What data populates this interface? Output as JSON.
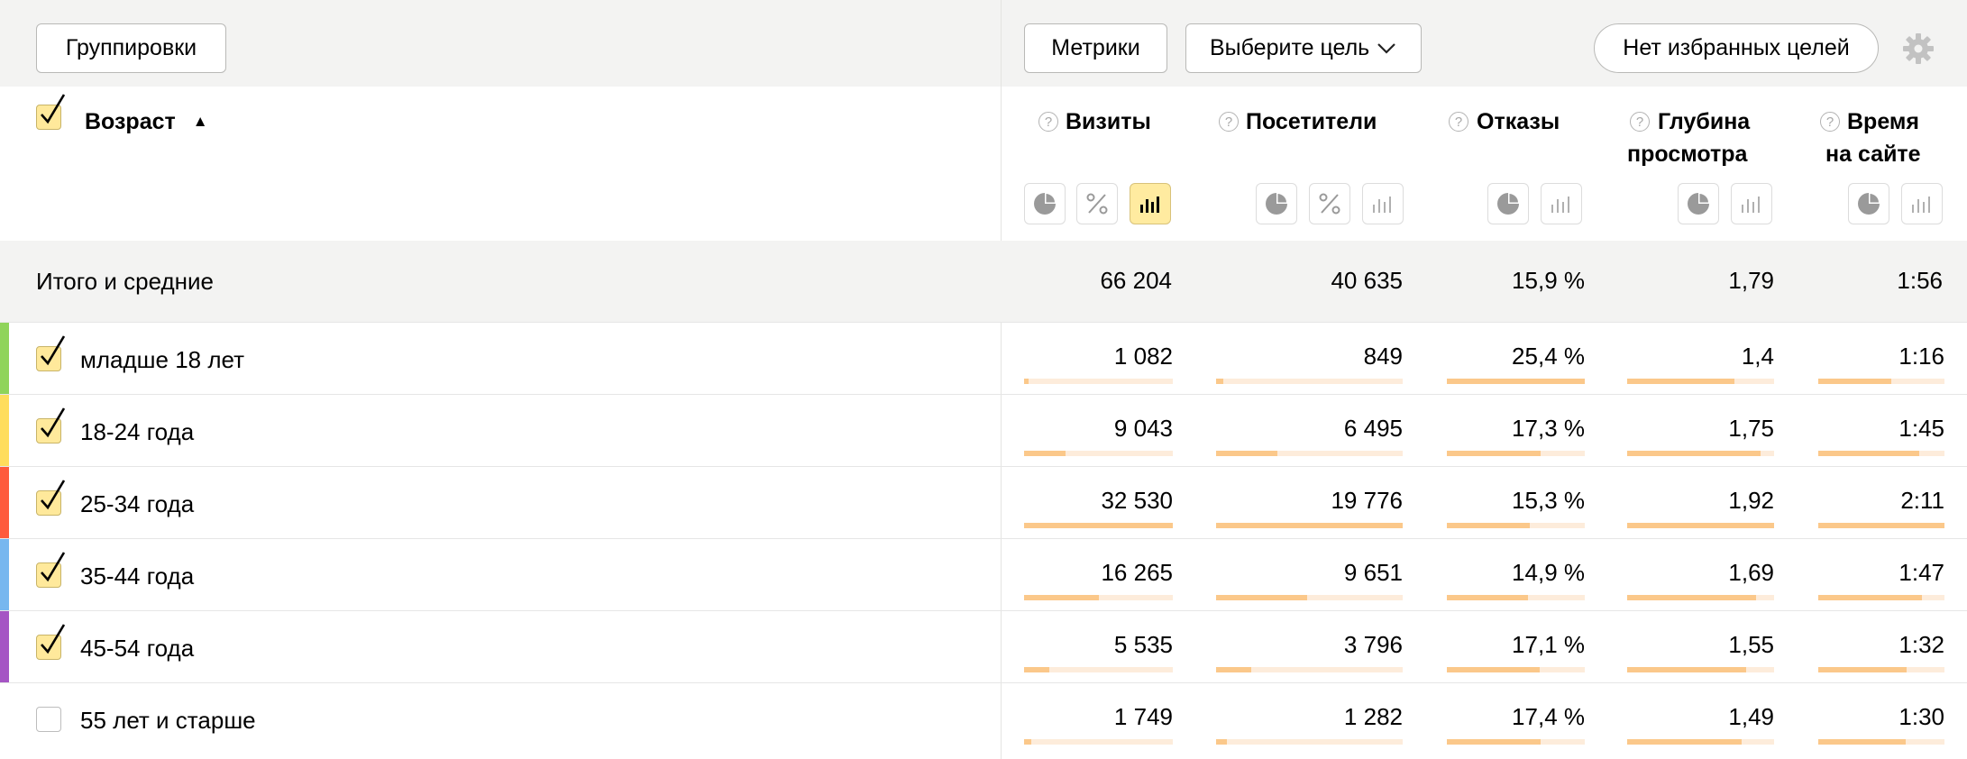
{
  "toolbar": {
    "groupings_label": "Группировки",
    "metrics_label": "Метрики",
    "goal_select_label": "Выберите цель",
    "favorite_goals_label": "Нет избранных целей"
  },
  "dimension": {
    "title": "Возраст",
    "sort_indicator": "▲"
  },
  "columns": [
    {
      "title": "Визиты",
      "title2": "",
      "help": "?"
    },
    {
      "title": "Посетители",
      "title2": "",
      "help": "?"
    },
    {
      "title": "Отказы",
      "title2": "",
      "help": "?"
    },
    {
      "title": "Глубина",
      "title2": "просмотра",
      "help": "?"
    },
    {
      "title": "Время",
      "title2": "на сайте",
      "help": "?"
    }
  ],
  "totals": {
    "label": "Итого и средние",
    "values": [
      "66 204",
      "40 635",
      "15,9 %",
      "1,79",
      "1:56"
    ]
  },
  "rows": [
    {
      "label": "младше 18 лет",
      "checked": true,
      "color": "#8fd45a",
      "values": [
        "1 082",
        "849",
        "25,4 %",
        "1,4",
        "1:16"
      ],
      "shares": [
        0.03,
        0.04,
        1.0,
        0.73,
        0.58
      ]
    },
    {
      "label": "18-24 года",
      "checked": true,
      "color": "#ffdd5c",
      "values": [
        "9 043",
        "6 495",
        "17,3 %",
        "1,75",
        "1:45"
      ],
      "shares": [
        0.28,
        0.33,
        0.68,
        0.91,
        0.8
      ]
    },
    {
      "label": "25-34 года",
      "checked": true,
      "color": "#ff5a3c",
      "values": [
        "32 530",
        "19 776",
        "15,3 %",
        "1,92",
        "2:11"
      ],
      "shares": [
        1.0,
        1.0,
        0.6,
        1.0,
        1.0
      ]
    },
    {
      "label": "35-44 года",
      "checked": true,
      "color": "#77b7ef",
      "values": [
        "16 265",
        "9 651",
        "14,9 %",
        "1,69",
        "1:47"
      ],
      "shares": [
        0.5,
        0.49,
        0.59,
        0.88,
        0.82
      ]
    },
    {
      "label": "45-54 года",
      "checked": true,
      "color": "#a555c4",
      "values": [
        "5 535",
        "3 796",
        "17,1 %",
        "1,55",
        "1:32"
      ],
      "shares": [
        0.17,
        0.19,
        0.67,
        0.81,
        0.7
      ]
    },
    {
      "label": "55 лет и старше",
      "checked": false,
      "color": "",
      "values": [
        "1 749",
        "1 282",
        "17,4 %",
        "1,49",
        "1:30"
      ],
      "shares": [
        0.05,
        0.06,
        0.68,
        0.78,
        0.69
      ]
    }
  ],
  "colors": {
    "bar": "#fbc88a",
    "bar_track": "#fdecdb",
    "active_toggle": "#ffeba0"
  }
}
